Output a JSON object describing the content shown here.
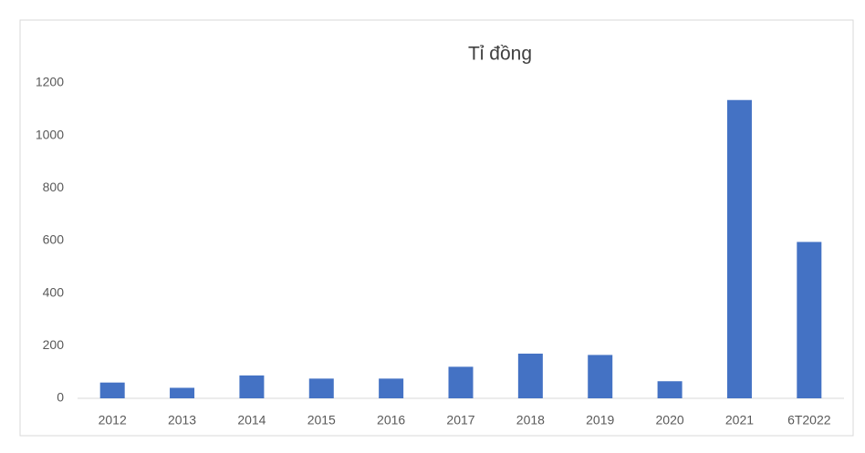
{
  "chart_data": {
    "type": "bar",
    "title": "Tỉ đồng",
    "categories": [
      "2012",
      "2013",
      "2014",
      "2015",
      "2016",
      "2017",
      "2018",
      "2019",
      "2020",
      "2021",
      "6T2022"
    ],
    "values": [
      60,
      40,
      87,
      75,
      75,
      120,
      170,
      165,
      65,
      1135,
      595
    ],
    "color": "#4472c4",
    "ylim": [
      0,
      1200
    ],
    "yticks": [
      0,
      200,
      400,
      600,
      800,
      1000,
      1200
    ],
    "grid": false
  }
}
